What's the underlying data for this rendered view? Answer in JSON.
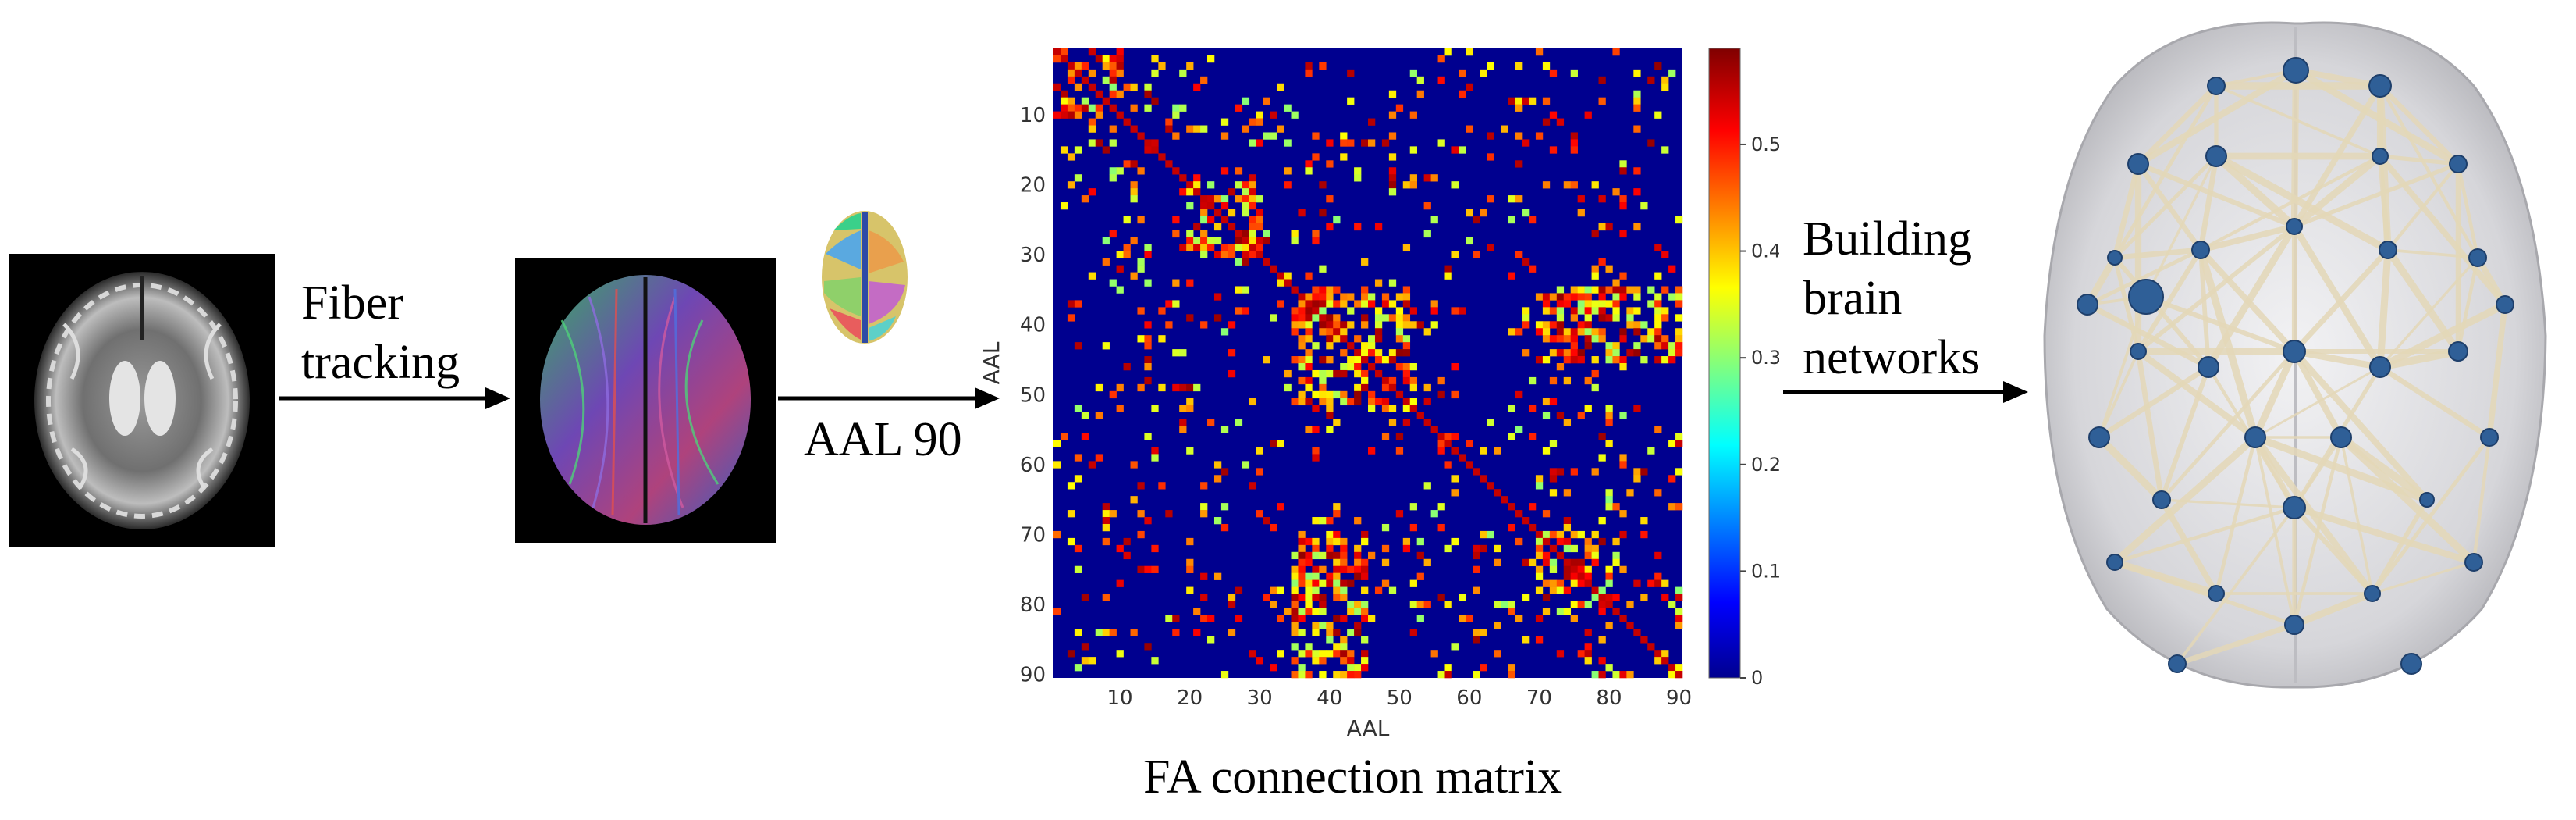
{
  "steps": {
    "step1_label": "Fiber tracking",
    "step1_lines": [
      "Fiber",
      "tracking"
    ],
    "step2_label": "AAL 90",
    "step3_lines": [
      "Building",
      "brain",
      "networks"
    ]
  },
  "figure": {
    "caption": "FA connection matrix"
  },
  "chart_data": {
    "type": "heatmap",
    "title": "",
    "xlabel": "AAL",
    "ylabel": "AAL",
    "xlim": [
      1,
      90
    ],
    "ylim": [
      1,
      90
    ],
    "x_ticks": [
      "10",
      "20",
      "30",
      "40",
      "50",
      "60",
      "70",
      "80",
      "90"
    ],
    "y_ticks": [
      "10",
      "20",
      "30",
      "40",
      "50",
      "60",
      "70",
      "80",
      "90"
    ],
    "colorbar": {
      "range": [
        0,
        0.59
      ],
      "ticks": [
        "0",
        "0.1",
        "0.2",
        "0.3",
        "0.4",
        "0.5"
      ],
      "colormap": "jet"
    },
    "blocks": [
      {
        "rows": [
          35,
          52
        ],
        "cols": [
          35,
          52
        ],
        "value": 0.5
      },
      {
        "rows": [
          70,
          80
        ],
        "cols": [
          70,
          80
        ],
        "value": 0.5
      },
      {
        "rows": [
          1,
          10
        ],
        "cols": [
          1,
          10
        ],
        "value": 0.45
      },
      {
        "rows": [
          20,
          30
        ],
        "cols": [
          20,
          30
        ],
        "value": 0.45
      },
      {
        "rows": [
          60,
          65
        ],
        "cols": [
          38,
          50
        ],
        "value": 0.02
      },
      {
        "rows": [
          70,
          90
        ],
        "cols": [
          35,
          45
        ],
        "value": 0.45
      }
    ],
    "grid": false
  },
  "colors": {
    "arrow": "#000000",
    "matrix_background": "#00008f",
    "node": "#2f5f97",
    "edge": "#e4d8b8",
    "brain_shell": "#c8c8cc"
  },
  "images": {
    "mri_slice": "grayscale-axial-mri",
    "tractography": "colored-fiber-tractography",
    "atlas": "aal-atlas-brain",
    "network": "brain-network-graph"
  }
}
